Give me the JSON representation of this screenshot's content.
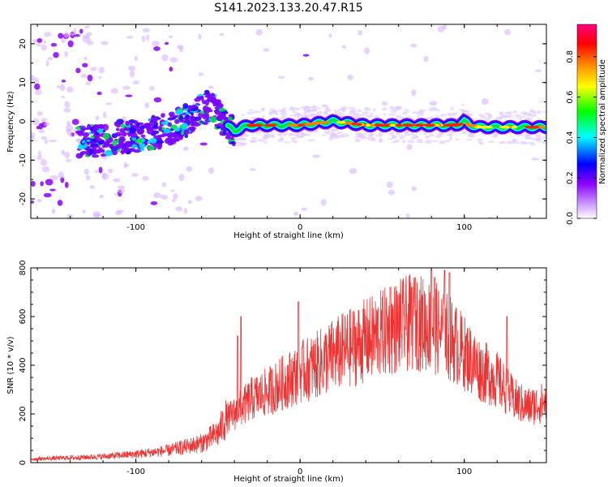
{
  "figure": {
    "title": "S141.2023.133.20.47.R15"
  },
  "chart_data": [
    {
      "type": "heatmap",
      "xlabel": "Height of straight line (km)",
      "ylabel": "Frequency (Hz)",
      "xlim": [
        -164,
        150
      ],
      "ylim": [
        -25,
        25
      ],
      "xticks": [
        -100,
        0,
        100
      ],
      "yticks": [
        -20,
        -10,
        0,
        10,
        20
      ],
      "ridge": {
        "x": [
          -160,
          -140,
          -130,
          -120,
          -110,
          -100,
          -90,
          -80,
          -70,
          -60,
          -55,
          -50,
          -45,
          -40,
          -35,
          -30,
          -20,
          -10,
          0,
          20,
          40,
          60,
          80,
          95,
          100,
          103,
          110,
          130,
          150
        ],
        "y": [
          -6,
          -6,
          -5,
          -5,
          -4,
          -4,
          -3,
          -2,
          0,
          3,
          4,
          2,
          -1,
          -2.5,
          -1.5,
          -1,
          -1,
          -1,
          -1,
          0,
          -1,
          -1,
          -1,
          -1,
          0,
          -1,
          -1.5,
          -1.5,
          -1.5
        ]
      },
      "colorbar": {
        "label": "Normalized spectral amplitude",
        "ticks": [
          "0.0",
          "0.2",
          "0.4",
          "0.6",
          "0.8"
        ],
        "range": [
          0,
          0.96
        ],
        "colors": [
          "#ffffff",
          "#8a00ff",
          "#0000ff",
          "#00ffff",
          "#00ff00",
          "#ffff00",
          "#ff8000",
          "#ff0000",
          "#ff0080"
        ]
      }
    },
    {
      "type": "line",
      "xlabel": "Height of straight line (km)",
      "ylabel": "SNR (10 * v/v)",
      "xlim": [
        -164,
        150
      ],
      "ylim": [
        0,
        800
      ],
      "xticks": [
        -100,
        0,
        100
      ],
      "yticks": [
        0,
        200,
        400,
        600,
        800
      ],
      "color": "#ee3333",
      "envelope": {
        "x": [
          -164,
          -140,
          -120,
          -100,
          -80,
          -60,
          -50,
          -45,
          -40,
          -30,
          -20,
          -10,
          0,
          10,
          20,
          30,
          40,
          50,
          60,
          70,
          80,
          90,
          100,
          110,
          120,
          125,
          130,
          135,
          140,
          145,
          150
        ],
        "y": [
          15,
          20,
          25,
          35,
          50,
          80,
          120,
          180,
          200,
          260,
          290,
          330,
          370,
          400,
          440,
          470,
          500,
          530,
          560,
          580,
          560,
          520,
          450,
          380,
          340,
          300,
          260,
          240,
          230,
          240,
          250
        ]
      },
      "spikes": [
        {
          "x": -36,
          "y": 600
        },
        {
          "x": -38,
          "y": 520
        },
        {
          "x": -1,
          "y": 660
        },
        {
          "x": 55,
          "y": 720
        },
        {
          "x": 68,
          "y": 720
        },
        {
          "x": 70,
          "y": 760
        },
        {
          "x": 80,
          "y": 790
        },
        {
          "x": 82,
          "y": 760
        },
        {
          "x": 88,
          "y": 790
        },
        {
          "x": 91,
          "y": 780
        },
        {
          "x": 126,
          "y": 600
        }
      ]
    }
  ]
}
